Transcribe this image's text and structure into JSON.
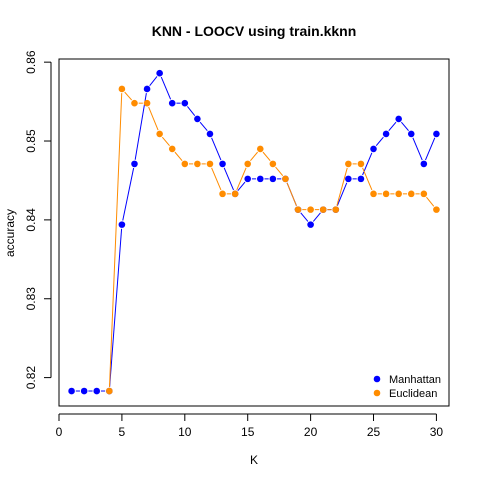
{
  "chart_data": {
    "type": "line",
    "title": "KNN - LOOCV using train.kknn",
    "xlabel": "K",
    "ylabel": "accuracy",
    "xlim": [
      0,
      31
    ],
    "ylim": [
      0.8164,
      0.8604
    ],
    "x_ticks": [
      0,
      5,
      10,
      15,
      20,
      25,
      30
    ],
    "x_tick_labels": [
      "0",
      "5",
      "10",
      "15",
      "20",
      "25",
      "30"
    ],
    "y_ticks": [
      0.82,
      0.83,
      0.84,
      0.85,
      0.86
    ],
    "y_tick_labels": [
      "0.82",
      "0.83",
      "0.84",
      "0.85",
      "0.86"
    ],
    "legend_position": "bottom-right",
    "grid": false,
    "x": [
      1,
      2,
      3,
      4,
      5,
      6,
      7,
      8,
      9,
      10,
      11,
      12,
      13,
      14,
      15,
      16,
      17,
      18,
      19,
      20,
      21,
      22,
      23,
      24,
      25,
      26,
      27,
      28,
      29,
      30
    ],
    "series": [
      {
        "name": "Manhattan",
        "color": "#0000ff",
        "values": [
          0.8183,
          0.8183,
          0.8183,
          0.8183,
          0.8394,
          0.8471,
          0.8566,
          0.8586,
          0.8548,
          0.8548,
          0.8528,
          0.8509,
          0.8471,
          0.8433,
          0.8452,
          0.8452,
          0.8452,
          0.8452,
          0.8413,
          0.8394,
          0.8413,
          0.8413,
          0.8452,
          0.8452,
          0.849,
          0.8509,
          0.8528,
          0.8509,
          0.8471,
          0.8509
        ]
      },
      {
        "name": "Euclidean",
        "color": "#ff8c00",
        "values": [
          null,
          null,
          null,
          0.8183,
          0.8566,
          0.8548,
          0.8548,
          0.8509,
          0.849,
          0.8471,
          0.8471,
          0.8471,
          0.8433,
          0.8433,
          0.8471,
          0.849,
          0.8471,
          0.8452,
          0.8413,
          0.8413,
          0.8413,
          0.8413,
          0.8471,
          0.8471,
          0.8433,
          0.8433,
          0.8433,
          0.8433,
          0.8433,
          0.8413
        ]
      }
    ]
  }
}
